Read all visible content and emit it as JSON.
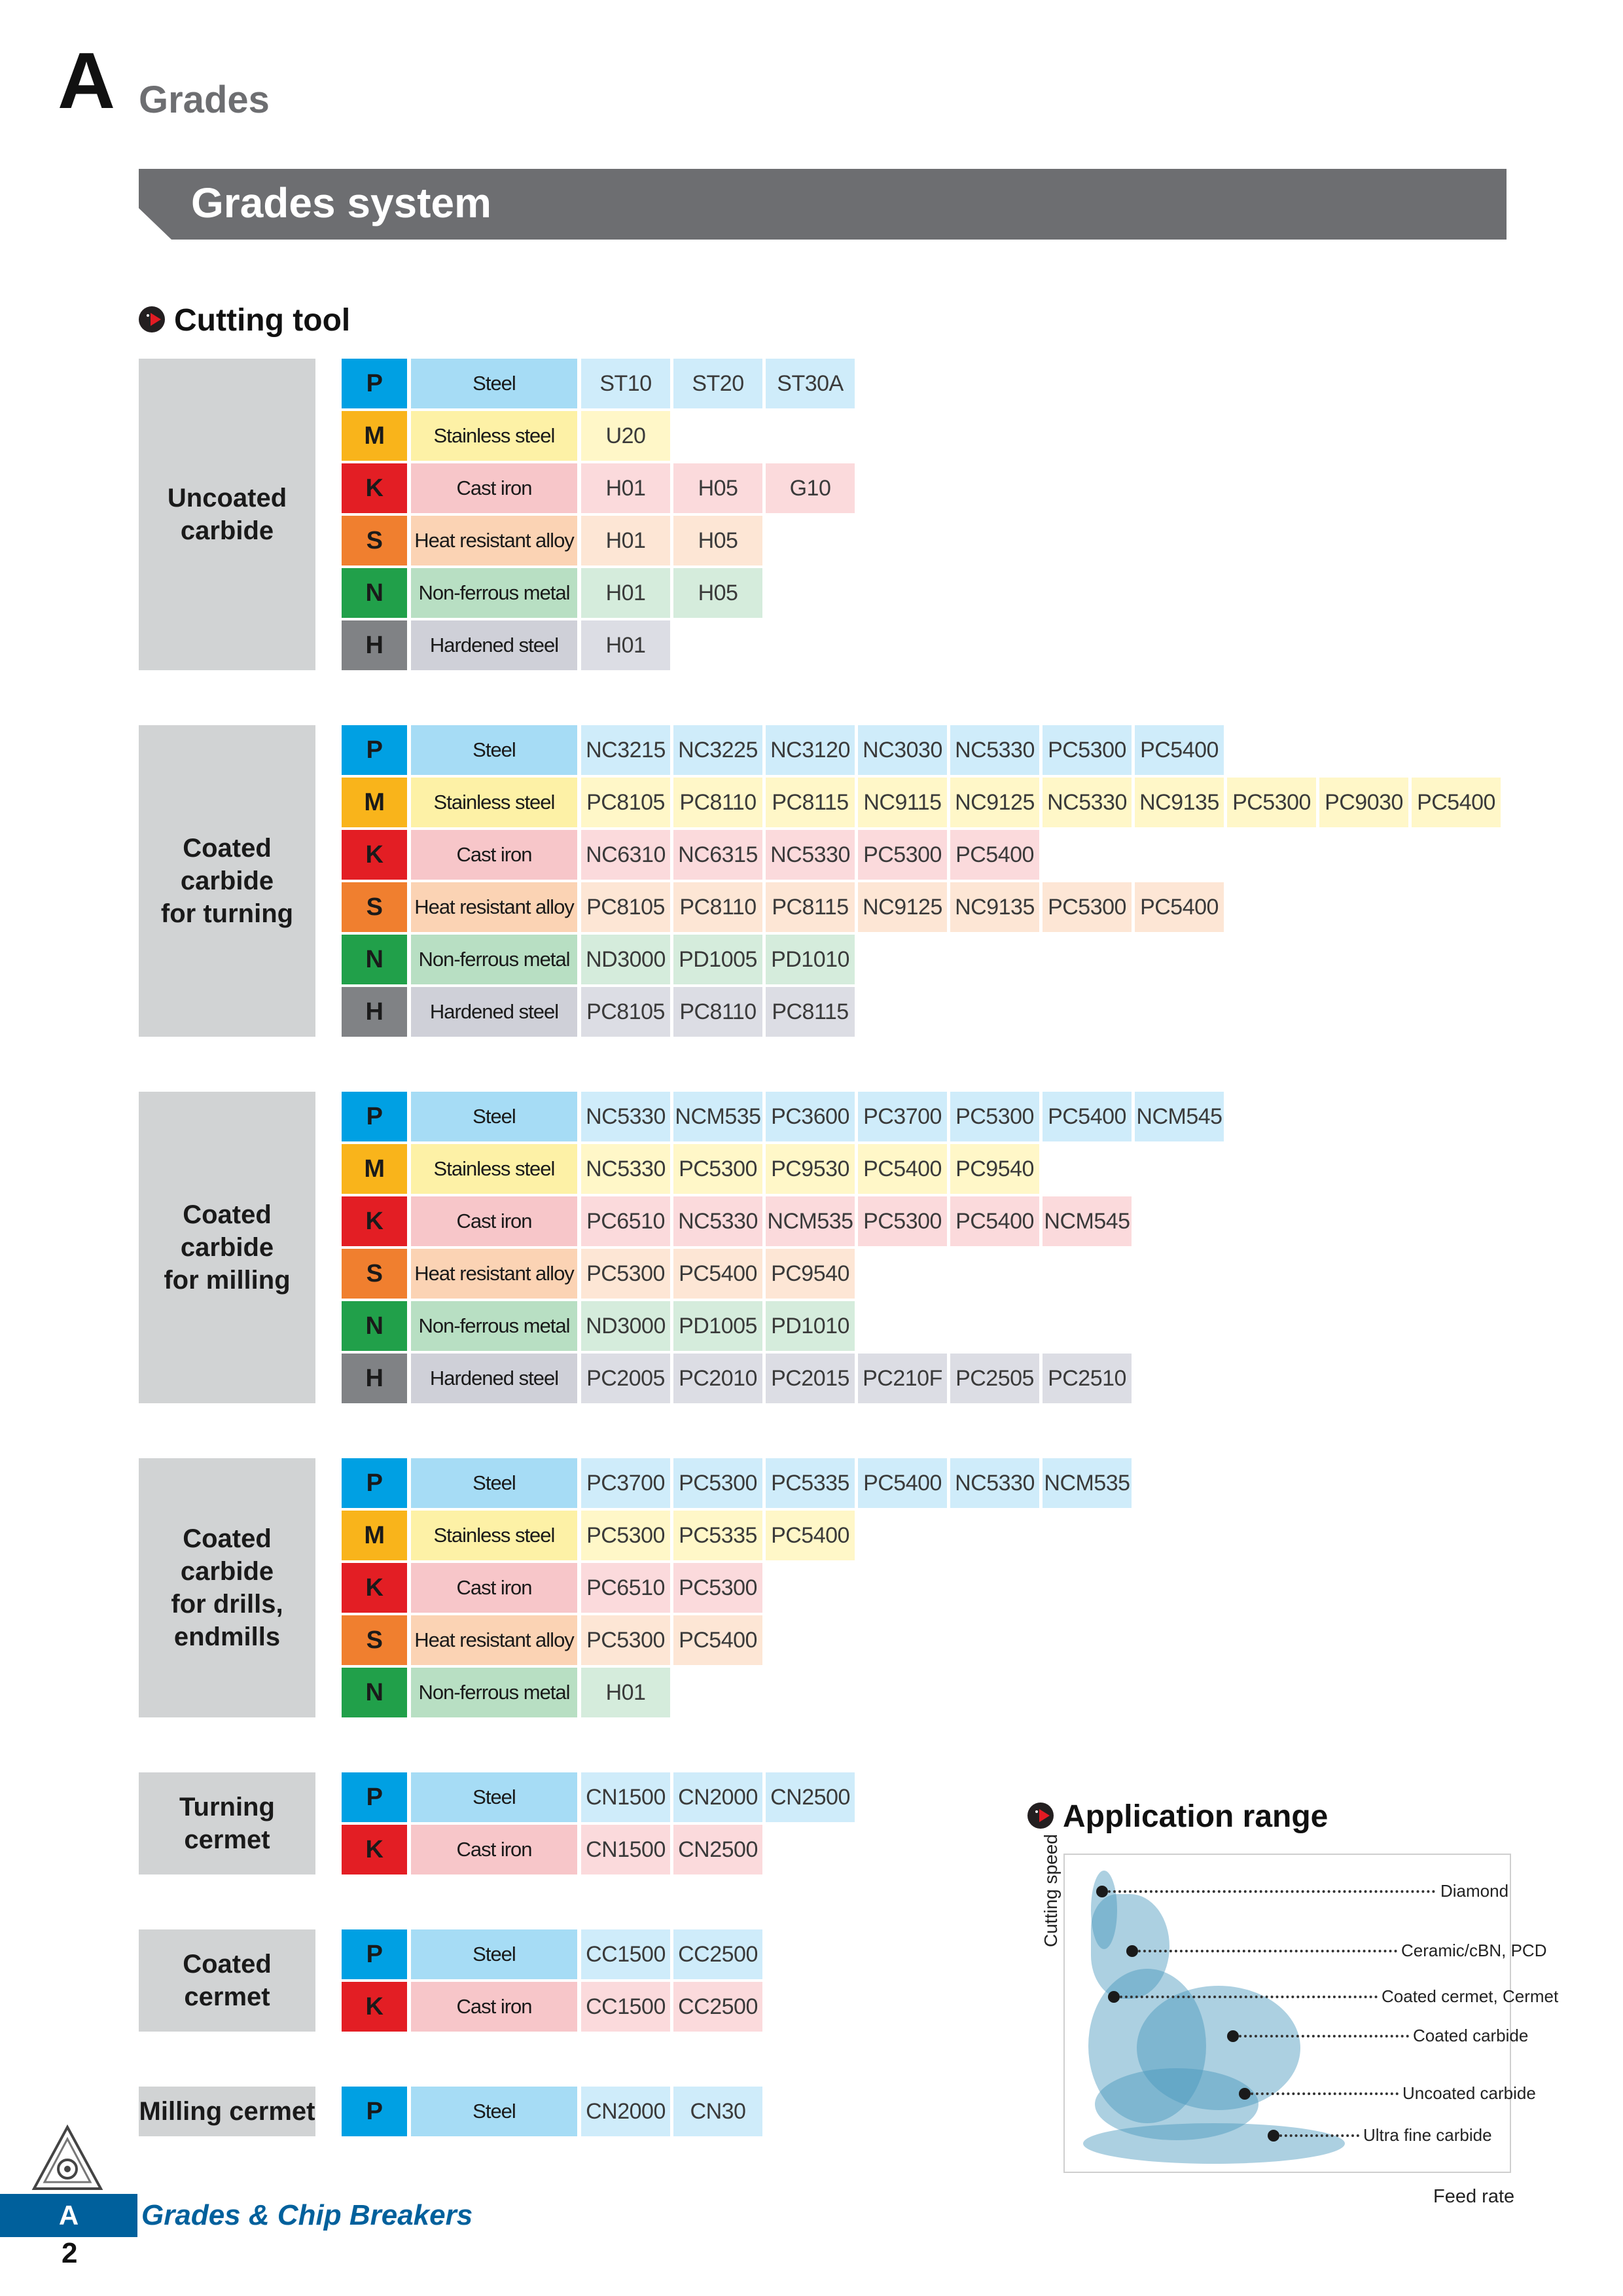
{
  "header": {
    "section_letter": "A",
    "section_title": "Grades",
    "banner_title": "Grades system"
  },
  "cutting_tool": {
    "heading": "Cutting tool",
    "groups": [
      {
        "label": "Uncoated\ncarbide",
        "rows": [
          {
            "iso": "P",
            "material": "Steel",
            "grades": [
              "ST10",
              "ST20",
              "ST30A"
            ]
          },
          {
            "iso": "M",
            "material": "Stainless steel",
            "grades": [
              "U20"
            ]
          },
          {
            "iso": "K",
            "material": "Cast iron",
            "grades": [
              "H01",
              "H05",
              "G10"
            ]
          },
          {
            "iso": "S",
            "material": "Heat resistant alloy",
            "grades": [
              "H01",
              "H05"
            ]
          },
          {
            "iso": "N",
            "material": "Non-ferrous metal",
            "grades": [
              "H01",
              "H05"
            ]
          },
          {
            "iso": "H",
            "material": "Hardened steel",
            "grades": [
              "H01"
            ]
          }
        ]
      },
      {
        "label": "Coated\ncarbide\nfor turning",
        "rows": [
          {
            "iso": "P",
            "material": "Steel",
            "grades": [
              "NC3215",
              "NC3225",
              "NC3120",
              "NC3030",
              "NC5330",
              "PC5300",
              "PC5400"
            ]
          },
          {
            "iso": "M",
            "material": "Stainless steel",
            "grades": [
              "PC8105",
              "PC8110",
              "PC8115",
              "NC9115",
              "NC9125",
              "NC5330",
              "NC9135",
              "PC5300",
              "PC9030",
              "PC5400"
            ]
          },
          {
            "iso": "K",
            "material": "Cast iron",
            "grades": [
              "NC6310",
              "NC6315",
              "NC5330",
              "PC5300",
              "PC5400"
            ]
          },
          {
            "iso": "S",
            "material": "Heat resistant alloy",
            "grades": [
              "PC8105",
              "PC8110",
              "PC8115",
              "NC9125",
              "NC9135",
              "PC5300",
              "PC5400"
            ]
          },
          {
            "iso": "N",
            "material": "Non-ferrous metal",
            "grades": [
              "ND3000",
              "PD1005",
              "PD1010"
            ]
          },
          {
            "iso": "H",
            "material": "Hardened steel",
            "grades": [
              "PC8105",
              "PC8110",
              "PC8115"
            ]
          }
        ]
      },
      {
        "label": "Coated\ncarbide\nfor milling",
        "rows": [
          {
            "iso": "P",
            "material": "Steel",
            "grades": [
              "NC5330",
              "NCM535",
              "PC3600",
              "PC3700",
              "PC5300",
              "PC5400",
              "NCM545"
            ]
          },
          {
            "iso": "M",
            "material": "Stainless steel",
            "grades": [
              "NC5330",
              "PC5300",
              "PC9530",
              "PC5400",
              "PC9540"
            ]
          },
          {
            "iso": "K",
            "material": "Cast iron",
            "grades": [
              "PC6510",
              "NC5330",
              "NCM535",
              "PC5300",
              "PC5400",
              "NCM545"
            ]
          },
          {
            "iso": "S",
            "material": "Heat resistant alloy",
            "grades": [
              "PC5300",
              "PC5400",
              "PC9540"
            ]
          },
          {
            "iso": "N",
            "material": "Non-ferrous metal",
            "grades": [
              "ND3000",
              "PD1005",
              "PD1010"
            ]
          },
          {
            "iso": "H",
            "material": "Hardened steel",
            "grades": [
              "PC2005",
              "PC2010",
              "PC2015",
              "PC210F",
              "PC2505",
              "PC2510"
            ]
          }
        ]
      },
      {
        "label": "Coated\ncarbide\nfor drills,\nendmills",
        "rows": [
          {
            "iso": "P",
            "material": "Steel",
            "grades": [
              "PC3700",
              "PC5300",
              "PC5335",
              "PC5400",
              "NC5330",
              "NCM535"
            ]
          },
          {
            "iso": "M",
            "material": "Stainless steel",
            "grades": [
              "PC5300",
              "PC5335",
              "PC5400"
            ]
          },
          {
            "iso": "K",
            "material": "Cast iron",
            "grades": [
              "PC6510",
              "PC5300"
            ]
          },
          {
            "iso": "S",
            "material": "Heat resistant alloy",
            "grades": [
              "PC5300",
              "PC5400"
            ]
          },
          {
            "iso": "N",
            "material": "Non-ferrous metal",
            "grades": [
              "H01"
            ]
          }
        ]
      },
      {
        "label": "Turning\ncermet",
        "rows": [
          {
            "iso": "P",
            "material": "Steel",
            "grades": [
              "CN1500",
              "CN2000",
              "CN2500"
            ]
          },
          {
            "iso": "K",
            "material": "Cast iron",
            "grades": [
              "CN1500",
              "CN2500"
            ]
          }
        ]
      },
      {
        "label": "Coated\ncermet",
        "rows": [
          {
            "iso": "P",
            "material": "Steel",
            "grades": [
              "CC1500",
              "CC2500"
            ]
          },
          {
            "iso": "K",
            "material": "Cast iron",
            "grades": [
              "CC1500",
              "CC2500"
            ]
          }
        ]
      },
      {
        "label": "Milling cermet",
        "rows": [
          {
            "iso": "P",
            "material": "Steel",
            "grades": [
              "CN2000",
              "CN30"
            ]
          }
        ]
      }
    ]
  },
  "application_range": {
    "heading": "Application range",
    "y_axis": "Cutting speed",
    "x_axis": "Feed rate",
    "labels": [
      "Diamond",
      "Ceramic/cBN, PCD",
      "Coated cermet, Cermet",
      "Coated carbide",
      "Uncoated carbide",
      "Ultra fine carbide"
    ]
  },
  "footer": {
    "tab_letter": "A",
    "title": "Grades & Chip Breakers",
    "page_number": "2"
  }
}
